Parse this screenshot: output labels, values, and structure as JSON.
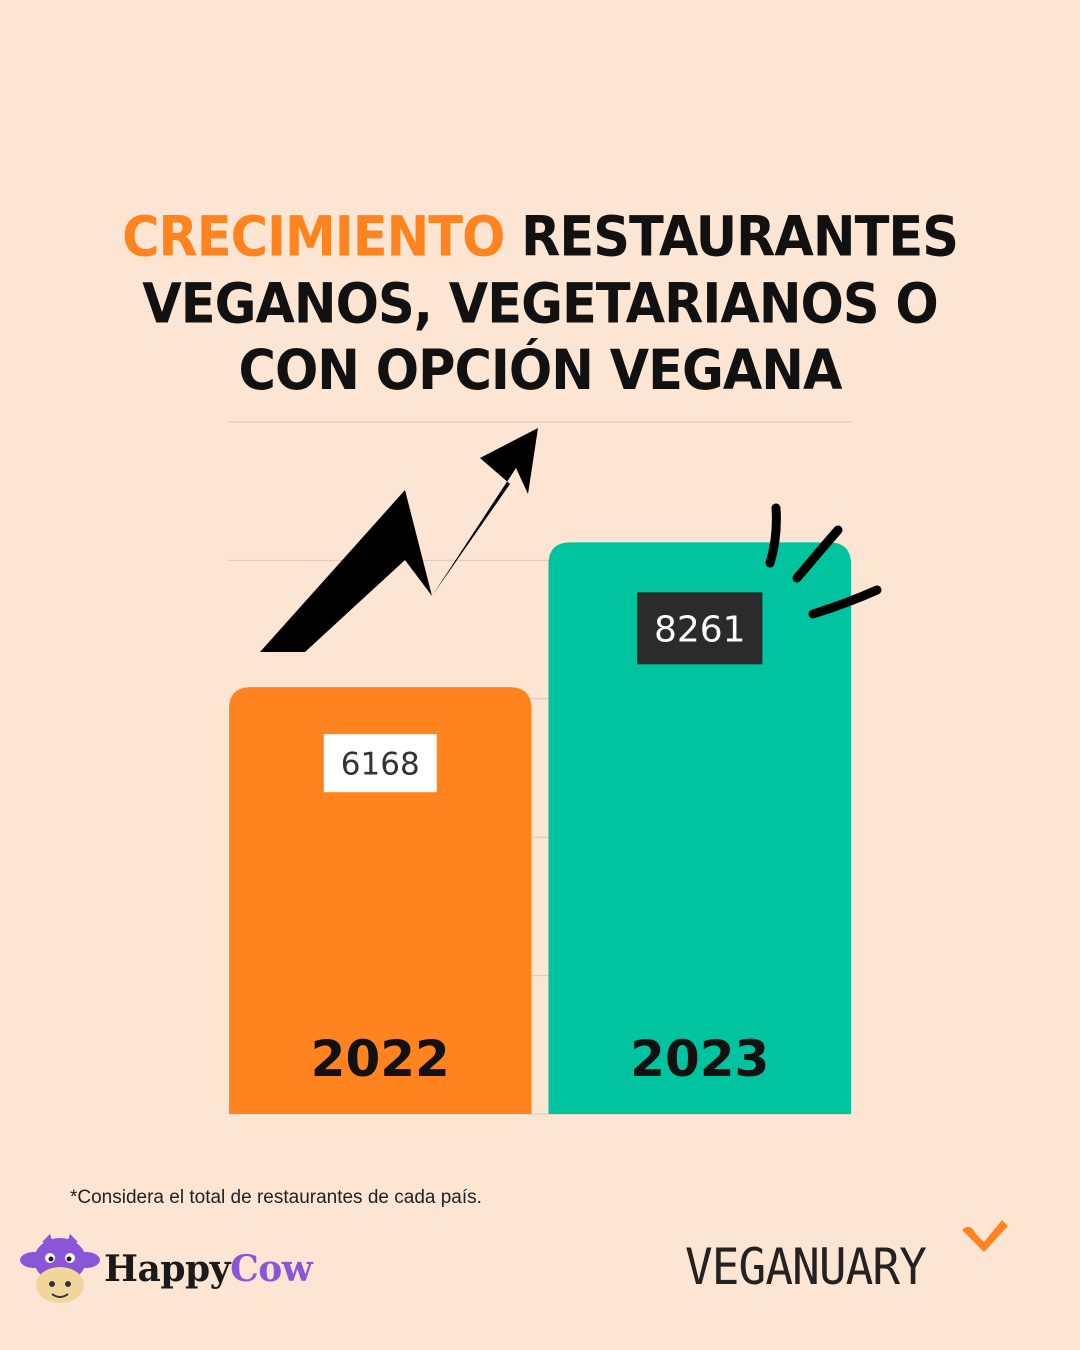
{
  "title": {
    "accent": "CRECIMIENTO",
    "line1_rest": " RESTAURANTES",
    "line2": "VEGANOS, VEGETARIANOS O",
    "line3": "CON OPCIÓN VEGANA"
  },
  "chart_data": {
    "type": "bar",
    "categories": [
      "2022",
      "2023"
    ],
    "values": [
      6168,
      8261
    ],
    "data_labels": [
      "6168",
      "8261"
    ],
    "colors": [
      "#ff8420",
      "#00c49f"
    ],
    "label_box_colors": [
      "#ffffff",
      "#2b2b2b"
    ],
    "label_text_colors": [
      "#333333",
      "#ffffff"
    ],
    "grid": true,
    "ylim": [
      0,
      10000
    ],
    "title": "CRECIMIENTO RESTAURANTES VEGANOS, VEGETARIANOS O CON OPCIÓN VEGANA",
    "xlabel": "",
    "ylabel": ""
  },
  "decorations": {
    "trend_arrow": "up-zigzag-arrow-icon",
    "emphasis": "sparkle-lines-icon"
  },
  "footnote": "*Considera el total de restaurantes de cada país.",
  "logos": {
    "happycow_word1": "Happy",
    "happycow_word2": "Cow",
    "happycow_icon": "cow-face-icon",
    "veganuary": "VEGANUARY",
    "veganuary_icon": "heart-check-icon"
  },
  "colors": {
    "background": "#fde5d4",
    "accent": "#ff8420",
    "green": "#00c49f",
    "purple": "#8a55d6"
  }
}
